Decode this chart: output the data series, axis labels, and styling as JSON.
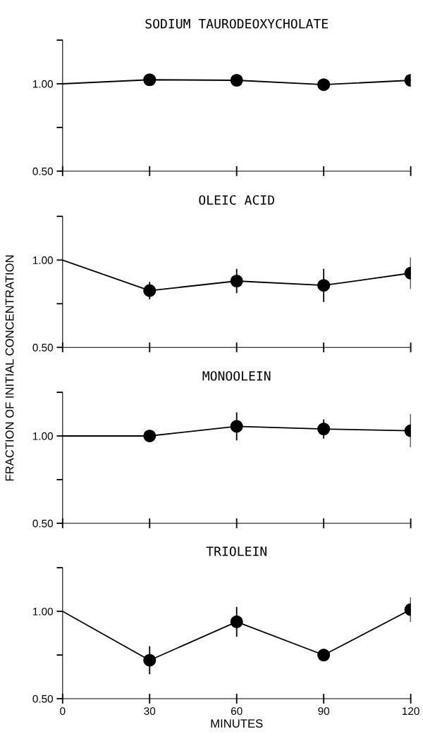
{
  "chart_data": [
    {
      "type": "line",
      "title": "SODIUM TAURODEOXYCHOLATE",
      "x": [
        0,
        30,
        60,
        90,
        120
      ],
      "xlim": [
        0,
        120
      ],
      "xticks": [
        0,
        30,
        60,
        90,
        120
      ],
      "ylim": [
        0.5,
        1.25
      ],
      "yticks": [
        {
          "value": 0.5,
          "label": "0.50"
        },
        {
          "value": 0.75,
          "label": null
        },
        {
          "value": 1.0,
          "label": "1.00"
        },
        {
          "value": 1.25,
          "label": null
        }
      ],
      "tick_labels": "y",
      "marker": "circle",
      "line_style": "solid",
      "grid": false,
      "legend": false,
      "series": [
        {
          "color": "#000000",
          "values": [
            1.0,
            1.023,
            1.02,
            0.995,
            1.02
          ]
        }
      ]
    },
    {
      "type": "line",
      "title": "OLEIC ACID",
      "ylabel": "FRACTION OF INITIAL CONCENTRATION",
      "x": [
        0,
        30,
        60,
        90,
        120
      ],
      "xlim": [
        0,
        120
      ],
      "xticks": [
        0,
        30,
        60,
        90,
        120
      ],
      "ylim": [
        0.5,
        1.25
      ],
      "yticks": [
        {
          "value": 0.5,
          "label": "0.50"
        },
        {
          "value": 0.75,
          "label": null
        },
        {
          "value": 1.0,
          "label": "1.00"
        },
        {
          "value": 1.25,
          "label": null
        }
      ],
      "tick_labels": "y",
      "marker": "circle",
      "line_style": "solid",
      "grid": false,
      "legend": false,
      "series": [
        {
          "color": "#000000",
          "values": [
            1.0,
            0.825,
            0.88,
            0.855,
            0.925
          ],
          "errors": [
            null,
            0.05,
            0.07,
            0.095,
            0.09
          ]
        }
      ]
    },
    {
      "type": "line",
      "title": "MONOOLEIN",
      "x": [
        0,
        30,
        60,
        90,
        120
      ],
      "xlim": [
        0,
        120
      ],
      "xticks": [
        0,
        30,
        60,
        90,
        120
      ],
      "ylim": [
        0.5,
        1.25
      ],
      "yticks": [
        {
          "value": 0.5,
          "label": "0.50"
        },
        {
          "value": 0.75,
          "label": null
        },
        {
          "value": 1.0,
          "label": "1.00"
        },
        {
          "value": 1.25,
          "label": null
        }
      ],
      "tick_labels": "y",
      "marker": "circle",
      "line_style": "solid",
      "grid": false,
      "legend": false,
      "series": [
        {
          "color": "#000000",
          "values": [
            1.0,
            1.0,
            1.055,
            1.04,
            1.03
          ],
          "errors": [
            null,
            null,
            0.08,
            0.055,
            0.095
          ]
        }
      ]
    },
    {
      "type": "line",
      "title": "TRIOLEIN",
      "xlabel": "MINUTES",
      "x": [
        0,
        30,
        60,
        90,
        120
      ],
      "xlim": [
        0,
        120
      ],
      "xticks": [
        0,
        30,
        60,
        90,
        120
      ],
      "ylim": [
        0.5,
        1.25
      ],
      "yticks": [
        {
          "value": 0.5,
          "label": "0.50"
        },
        {
          "value": 0.75,
          "label": null
        },
        {
          "value": 1.0,
          "label": "1.00"
        },
        {
          "value": 1.25,
          "label": null
        }
      ],
      "marker": "circle",
      "line_style": "solid",
      "grid": false,
      "legend": false,
      "series": [
        {
          "color": "#000000",
          "values": [
            1.0,
            0.72,
            0.94,
            0.75,
            1.01
          ],
          "errors": [
            null,
            0.08,
            0.085,
            null,
            0.07
          ]
        }
      ]
    }
  ]
}
